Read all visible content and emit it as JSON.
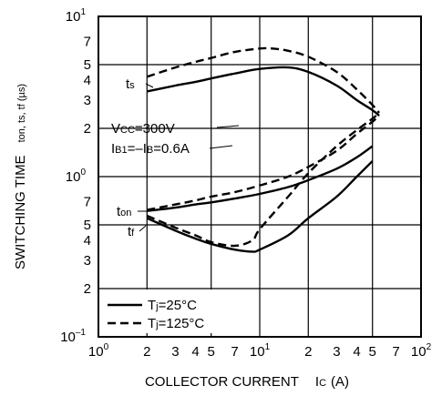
{
  "chart_data": {
    "type": "line",
    "xlabel": "COLLECTOR CURRENT",
    "xlabel_symbol": "I",
    "xlabel_subscript": "C",
    "xlabel_unit": "(A)",
    "ylabel": "SWITCHING TIME",
    "ylabel_symbols": "ton, ts, tf (µs)",
    "x_scale": "log",
    "y_scale": "log",
    "xlim": [
      1,
      100
    ],
    "ylim": [
      0.1,
      10
    ],
    "grid": true,
    "x_ticks": [
      {
        "value": 1,
        "base": "10",
        "exp": "0"
      },
      {
        "value": 2,
        "base": "2",
        "exp": ""
      },
      {
        "value": 3,
        "base": "3",
        "exp": ""
      },
      {
        "value": 4,
        "base": "4",
        "exp": ""
      },
      {
        "value": 5,
        "base": "5",
        "exp": ""
      },
      {
        "value": 7,
        "base": "7",
        "exp": ""
      },
      {
        "value": 10,
        "base": "10",
        "exp": "1"
      },
      {
        "value": 20,
        "base": "2",
        "exp": ""
      },
      {
        "value": 30,
        "base": "3",
        "exp": ""
      },
      {
        "value": 40,
        "base": "4",
        "exp": ""
      },
      {
        "value": 50,
        "base": "5",
        "exp": ""
      },
      {
        "value": 70,
        "base": "7",
        "exp": ""
      },
      {
        "value": 100,
        "base": "10",
        "exp": "2"
      }
    ],
    "y_ticks": [
      {
        "value": 0.1,
        "base": "10",
        "exp": "–1"
      },
      {
        "value": 0.2,
        "base": "2",
        "exp": ""
      },
      {
        "value": 0.3,
        "base": "3",
        "exp": ""
      },
      {
        "value": 0.4,
        "base": "4",
        "exp": ""
      },
      {
        "value": 0.5,
        "base": "5",
        "exp": ""
      },
      {
        "value": 0.7,
        "base": "7",
        "exp": ""
      },
      {
        "value": 1,
        "base": "10",
        "exp": "0"
      },
      {
        "value": 2,
        "base": "2",
        "exp": ""
      },
      {
        "value": 3,
        "base": "3",
        "exp": ""
      },
      {
        "value": 4,
        "base": "4",
        "exp": ""
      },
      {
        "value": 5,
        "base": "5",
        "exp": ""
      },
      {
        "value": 7,
        "base": "7",
        "exp": ""
      },
      {
        "value": 10,
        "base": "10",
        "exp": "1"
      }
    ],
    "conditions": {
      "vcc": {
        "symbol": "V",
        "sub": "CC",
        "value": "=300V"
      },
      "ib": {
        "s1": "I",
        "sub1": "B1",
        "mid": "=–I",
        "sub2": "B",
        "value": "=0.6A"
      }
    },
    "curve_labels": [
      {
        "symbol": "t",
        "sub": "s"
      },
      {
        "symbol": "t",
        "sub": "on"
      },
      {
        "symbol": "t",
        "sub": "f"
      }
    ],
    "legend": {
      "placement": "bottom-left",
      "entries": [
        {
          "symbol": "T",
          "sub": "j",
          "value": "=25°C",
          "style": "solid"
        },
        {
          "symbol": "T",
          "sub": "j",
          "value": "=125°C",
          "style": "dashed"
        }
      ]
    },
    "series": [
      {
        "curve": "ts",
        "condition": "25°C",
        "style": "solid",
        "x": [
          2,
          3,
          4,
          5,
          7,
          10,
          15,
          20,
          30,
          40,
          50,
          55
        ],
        "y": [
          3.4,
          3.7,
          3.9,
          4.1,
          4.4,
          4.7,
          4.8,
          4.5,
          3.7,
          3.0,
          2.6,
          2.4
        ]
      },
      {
        "curve": "ts",
        "condition": "125°C",
        "style": "dashed",
        "x": [
          2,
          3,
          4,
          5,
          7,
          10,
          12,
          15,
          20,
          30,
          40,
          50,
          55
        ],
        "y": [
          4.2,
          4.8,
          5.2,
          5.5,
          6.0,
          6.3,
          6.3,
          6.1,
          5.6,
          4.5,
          3.5,
          2.8,
          2.5
        ]
      },
      {
        "curve": "ton",
        "condition": "25°C",
        "style": "solid",
        "x": [
          2,
          3,
          4,
          5,
          7,
          10,
          15,
          20,
          30,
          40,
          50
        ],
        "y": [
          0.61,
          0.64,
          0.67,
          0.69,
          0.73,
          0.78,
          0.86,
          0.95,
          1.12,
          1.32,
          1.55
        ]
      },
      {
        "curve": "ton",
        "condition": "125°C",
        "style": "dashed",
        "x": [
          2,
          3,
          4,
          5,
          7,
          10,
          15,
          20,
          30,
          40,
          50,
          55
        ],
        "y": [
          0.62,
          0.67,
          0.71,
          0.75,
          0.8,
          0.88,
          1.0,
          1.15,
          1.45,
          1.85,
          2.2,
          2.4
        ]
      },
      {
        "curve": "tf",
        "condition": "25°C",
        "style": "solid",
        "x": [
          2,
          3,
          4,
          5,
          7,
          9,
          10,
          15,
          20,
          30,
          40,
          50
        ],
        "y": [
          0.55,
          0.46,
          0.41,
          0.38,
          0.35,
          0.34,
          0.35,
          0.43,
          0.55,
          0.75,
          1.0,
          1.25
        ]
      },
      {
        "curve": "tf",
        "condition": "125°C",
        "style": "dashed",
        "x": [
          2,
          3,
          4,
          5,
          7,
          9,
          10,
          15,
          20,
          30,
          40,
          50,
          55
        ],
        "y": [
          0.57,
          0.48,
          0.43,
          0.39,
          0.37,
          0.4,
          0.47,
          0.75,
          1.05,
          1.55,
          1.95,
          2.3,
          2.5
        ]
      }
    ]
  }
}
